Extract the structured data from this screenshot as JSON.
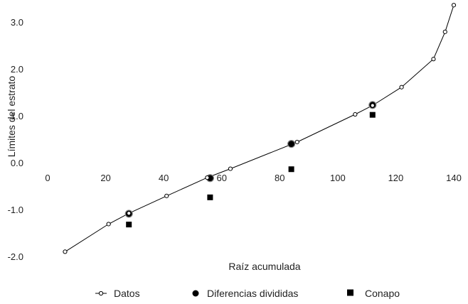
{
  "chart_data": {
    "type": "scatter",
    "xlabel": "Raíz acumulada",
    "ylabel": "Límites del estrato",
    "xlim": [
      0,
      140
    ],
    "ylim": [
      -2.0,
      3.4
    ],
    "x_ticks": [
      {
        "value": 0,
        "label": "0"
      },
      {
        "value": 20,
        "label": "20"
      },
      {
        "value": 40,
        "label": "40"
      },
      {
        "value": 60,
        "label": "60"
      },
      {
        "value": 80,
        "label": "80"
      },
      {
        "value": 100,
        "label": "100"
      },
      {
        "value": 120,
        "label": "120"
      },
      {
        "value": 140,
        "label": "140"
      }
    ],
    "y_ticks": [
      {
        "value": 3.0,
        "label": "3.0"
      },
      {
        "value": 2.0,
        "label": "2.0"
      },
      {
        "value": 1.0,
        "label": "1.0"
      },
      {
        "value": 0.0,
        "label": "0.0"
      },
      {
        "value": -1.0,
        "label": "-1.0"
      },
      {
        "value": -2.0,
        "label": "-2.0"
      }
    ],
    "grid": false,
    "legend_position": "bottom",
    "series": [
      {
        "name": "Datos",
        "marker": "open-circle-line",
        "color": "#000000",
        "points": [
          {
            "x": 6,
            "y": -1.9
          },
          {
            "x": 21,
            "y": -1.31
          },
          {
            "x": 28,
            "y": -1.08
          },
          {
            "x": 41,
            "y": -0.71
          },
          {
            "x": 55,
            "y": -0.32
          },
          {
            "x": 63,
            "y": -0.13
          },
          {
            "x": 86,
            "y": 0.44
          },
          {
            "x": 106,
            "y": 1.03
          },
          {
            "x": 112,
            "y": 1.22
          },
          {
            "x": 122,
            "y": 1.61
          },
          {
            "x": 133,
            "y": 2.21
          },
          {
            "x": 137,
            "y": 2.79
          },
          {
            "x": 140,
            "y": 3.36
          }
        ]
      },
      {
        "name": "Diferencias divididas",
        "marker": "filled-circle",
        "color": "#000000",
        "points": [
          {
            "x": 28,
            "y": -1.09
          },
          {
            "x": 56,
            "y": -0.33
          },
          {
            "x": 84,
            "y": 0.4
          },
          {
            "x": 112,
            "y": 1.23
          }
        ]
      },
      {
        "name": "Conapo",
        "marker": "filled-square",
        "color": "#000000",
        "points": [
          {
            "x": 28,
            "y": -1.32
          },
          {
            "x": 56,
            "y": -0.74
          },
          {
            "x": 84,
            "y": -0.14
          },
          {
            "x": 112,
            "y": 1.02
          }
        ]
      }
    ]
  }
}
